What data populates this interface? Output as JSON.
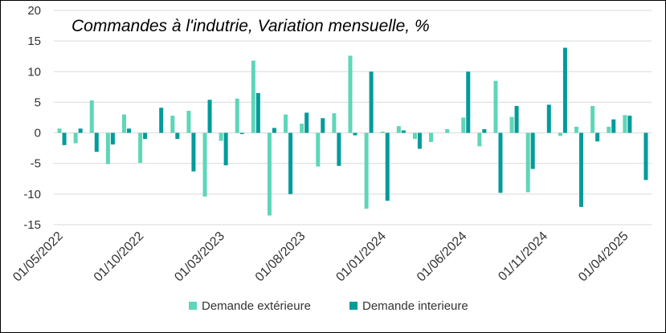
{
  "chart_data": {
    "type": "bar",
    "title": "Commandes à l'indutrie, Variation mensuelle, %",
    "xlabel": "",
    "ylabel": "",
    "ylim": [
      -15,
      20
    ],
    "yticks": [
      20,
      15,
      10,
      5,
      0,
      -5,
      -10,
      -15
    ],
    "grid": true,
    "legend_position": "bottom",
    "x_tick_labels": [
      "01/05/2022",
      "01/10/2022",
      "01/03/2023",
      "01/08/2023",
      "01/01/2024",
      "01/06/2024",
      "01/11/2024",
      "01/04/2025"
    ],
    "x_tick_every": 5,
    "categories": [
      "05/2022",
      "06/2022",
      "07/2022",
      "08/2022",
      "09/2022",
      "10/2022",
      "11/2022",
      "12/2022",
      "01/2023",
      "02/2023",
      "03/2023",
      "04/2023",
      "05/2023",
      "06/2023",
      "07/2023",
      "08/2023",
      "09/2023",
      "10/2023",
      "11/2023",
      "12/2023",
      "01/2024",
      "02/2024",
      "03/2024",
      "04/2024",
      "05/2024",
      "06/2024",
      "07/2024",
      "08/2024",
      "09/2024",
      "10/2024",
      "11/2024",
      "12/2024",
      "01/2025",
      "02/2025",
      "03/2025",
      "04/2025",
      "05/2025"
    ],
    "series": [
      {
        "name": "Demande extérieure",
        "color": "#5ED6B8",
        "values": [
          0.7,
          -1.7,
          5.3,
          -5.1,
          3.0,
          -4.9,
          0,
          2.8,
          3.6,
          -10.4,
          -1.3,
          5.6,
          11.8,
          -13.5,
          3.0,
          1.5,
          -5.5,
          3.2,
          12.6,
          -12.4,
          0.2,
          1.1,
          -1.0,
          -1.5,
          0.6,
          2.5,
          -2.2,
          8.5,
          2.6,
          -9.7,
          0,
          -0.5,
          1.0,
          4.4,
          1.0,
          2.9,
          0
        ]
      },
      {
        "name": "Demande interieure",
        "color": "#009B9B",
        "values": [
          -2.0,
          0.7,
          -3.1,
          -1.9,
          0.7,
          -1.0,
          4.1,
          -1.0,
          -6.3,
          5.4,
          -5.3,
          -0.2,
          6.5,
          0.8,
          -10.0,
          3.3,
          2.4,
          -5.4,
          -0.4,
          10.0,
          -11.1,
          0.4,
          -2.6,
          0,
          0,
          10.0,
          0.6,
          -9.8,
          4.4,
          -5.9,
          4.6,
          13.9,
          -12.1,
          -1.4,
          2.2,
          2.8,
          -7.7
        ]
      }
    ]
  }
}
